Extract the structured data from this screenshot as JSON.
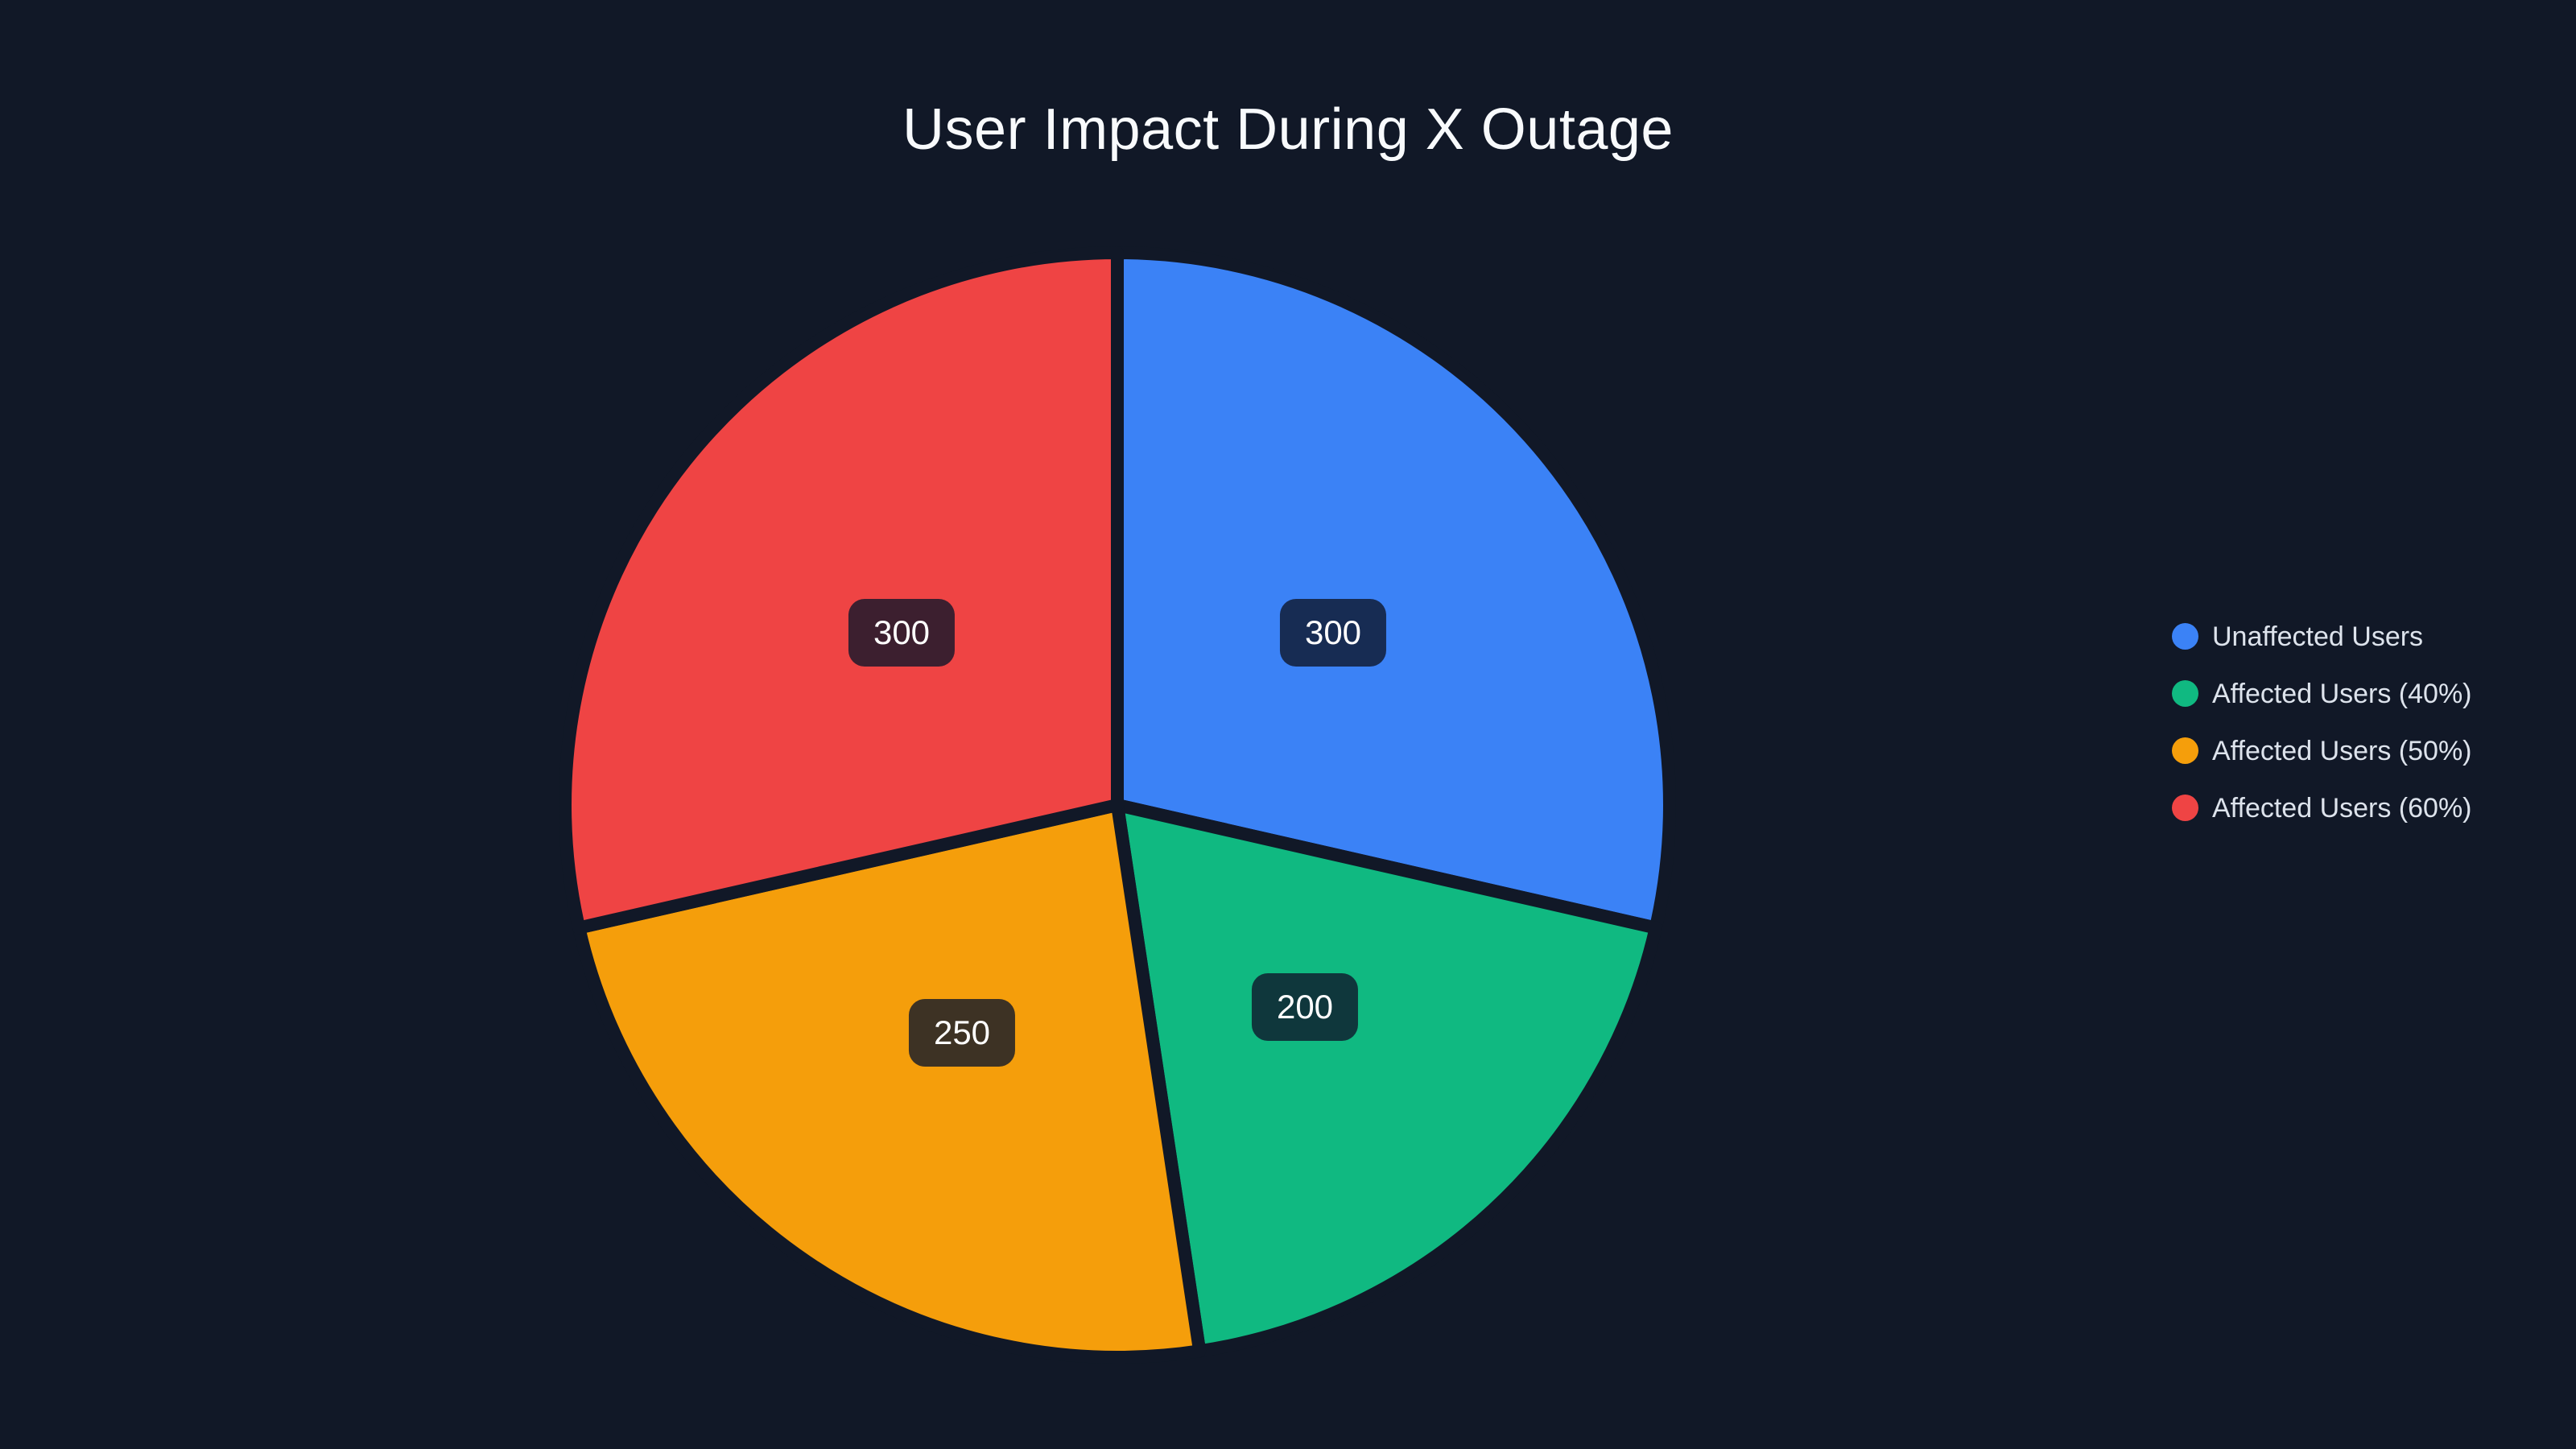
{
  "chart_data": {
    "type": "pie",
    "title": "User Impact During X Outage",
    "legend_position": "right",
    "start_angle_deg": 0,
    "direction": "clockwise",
    "categories": [
      "Unaffected Users",
      "Affected Users (40%)",
      "Affected Users (50%)",
      "Affected Users (60%)"
    ],
    "values": [
      300,
      200,
      250,
      300
    ],
    "segments": [
      {
        "label": "Unaffected Users",
        "value": 300,
        "color": "#3b82f6"
      },
      {
        "label": "Affected Users (40%)",
        "value": 200,
        "color": "#10b981"
      },
      {
        "label": "Affected Users (50%)",
        "value": 250,
        "color": "#f59e0b"
      },
      {
        "label": "Affected Users (60%)",
        "value": 300,
        "color": "#ef4444"
      }
    ]
  },
  "colors": {
    "background": "#111827",
    "title_text": "#f8fafc",
    "legend_text": "#dde3ec",
    "label_text": "#ffffff",
    "label_bg": "rgba(15,23,42,0.8)"
  }
}
